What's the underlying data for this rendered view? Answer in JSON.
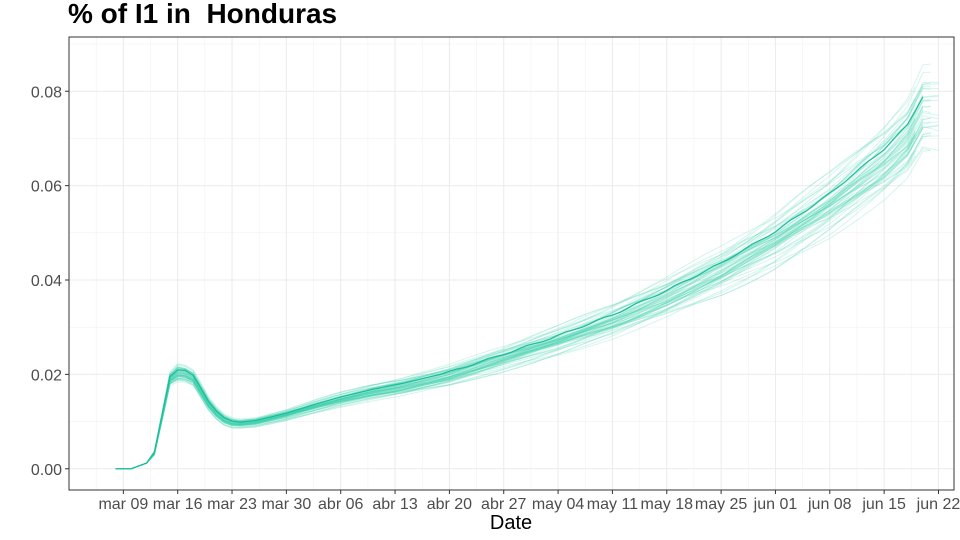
{
  "chart_data": {
    "type": "line",
    "title": "% of I1 in  Honduras",
    "xlabel": "Date",
    "ylabel": "",
    "x_ticks": [
      "mar 09",
      "mar 16",
      "mar 23",
      "mar 30",
      "abr 06",
      "abr 13",
      "abr 20",
      "abr 27",
      "may 04",
      "may 11",
      "may 18",
      "may 25",
      "jun 01",
      "jun 08",
      "jun 15",
      "jun 22"
    ],
    "y_ticks": [
      "0.00",
      "0.02",
      "0.04",
      "0.06",
      "0.08"
    ],
    "ylim": [
      -0.0045,
      0.0915
    ],
    "x_range": [
      "2020-03-02",
      "2020-06-24"
    ],
    "grid": true,
    "line_color": "#1ABC9C",
    "ensemble_color": "#3FD1AE",
    "highlight": {
      "name": "",
      "dates": [
        "2020-03-08",
        "2020-03-10",
        "2020-03-12",
        "2020-03-13",
        "2020-03-14",
        "2020-03-15",
        "2020-03-16",
        "2020-03-17",
        "2020-03-18",
        "2020-03-19",
        "2020-03-20",
        "2020-03-21",
        "2020-03-22",
        "2020-03-23",
        "2020-03-24",
        "2020-03-26",
        "2020-03-30",
        "2020-04-03",
        "2020-04-06",
        "2020-04-10",
        "2020-04-14",
        "2020-04-20",
        "2020-04-27",
        "2020-05-04",
        "2020-05-11",
        "2020-05-18",
        "2020-05-25",
        "2020-06-01",
        "2020-06-08",
        "2020-06-15",
        "2020-06-18",
        "2020-06-20"
      ],
      "values": [
        0.0,
        0.0,
        0.0012,
        0.0035,
        0.0115,
        0.0195,
        0.021,
        0.0207,
        0.0198,
        0.017,
        0.0142,
        0.0122,
        0.0108,
        0.0101,
        0.0099,
        0.0102,
        0.0118,
        0.0138,
        0.0152,
        0.0168,
        0.0181,
        0.0205,
        0.0243,
        0.0282,
        0.0326,
        0.0378,
        0.0436,
        0.0503,
        0.0583,
        0.0678,
        0.0728,
        0.079
      ]
    },
    "bands": {
      "spike_low": 0.0165,
      "spike_high": 0.022,
      "trough_low": 0.0087,
      "trough_high": 0.0113,
      "end_low": 0.06,
      "end_high": 0.086
    },
    "ensemble_count": 60
  }
}
